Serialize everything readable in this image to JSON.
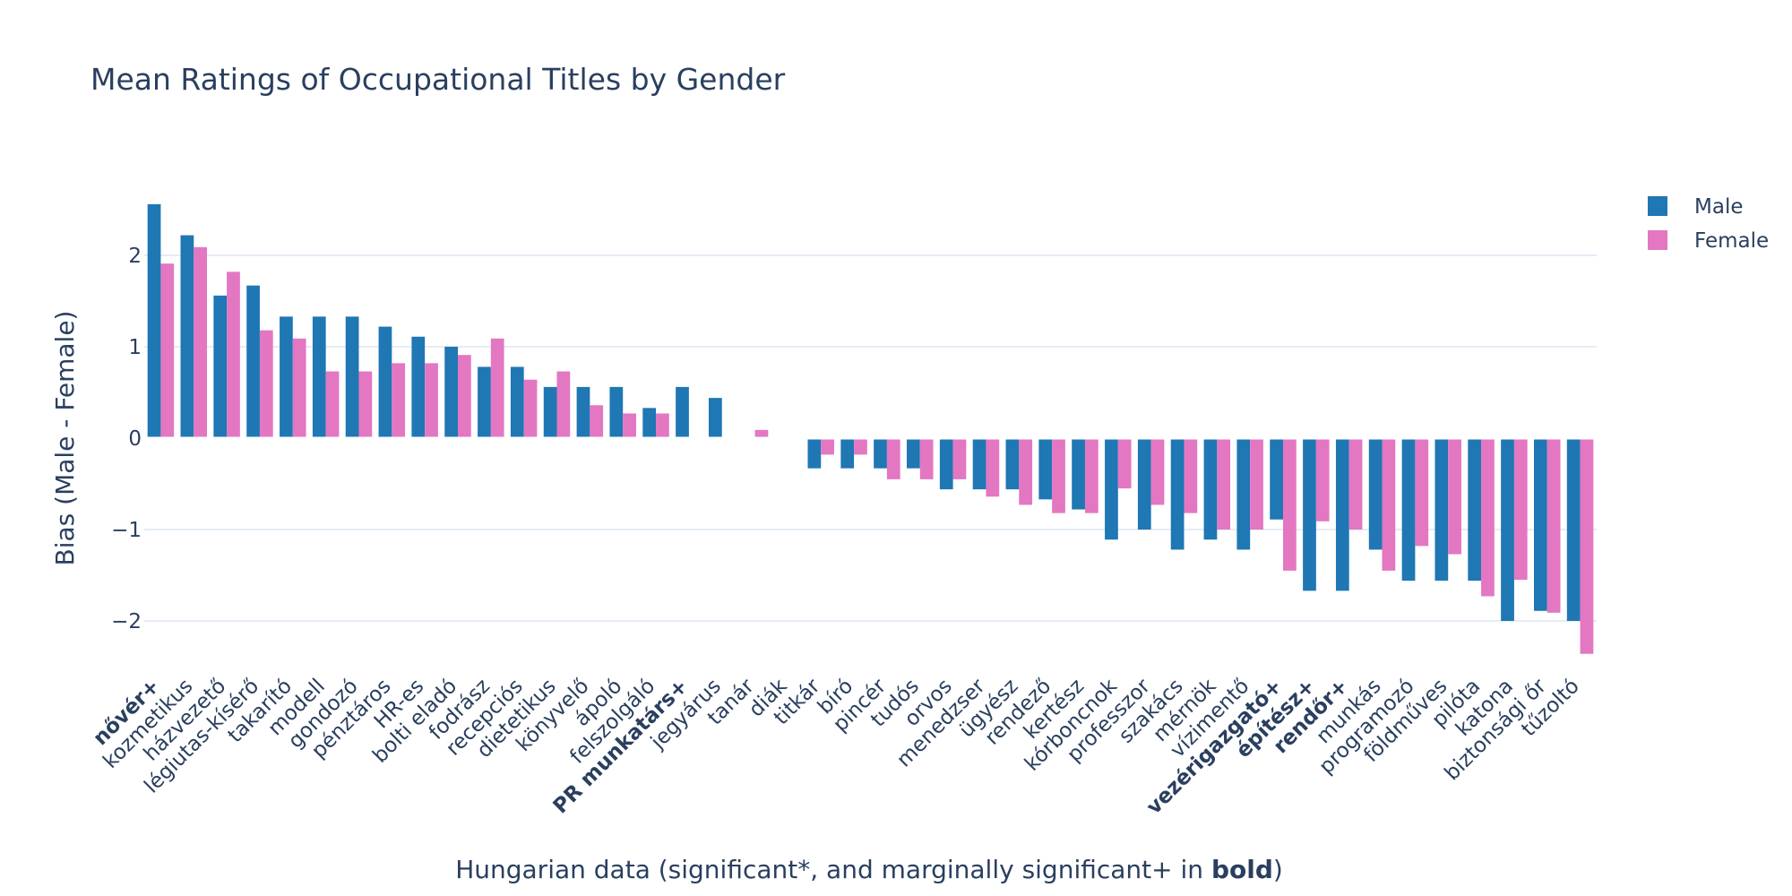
{
  "chart_data": {
    "type": "bar",
    "title": "Mean Ratings of Occupational Titles by Gender",
    "xlabel_parts": [
      "Hungarian data (significant*, and marginally significant+ in ",
      "bold",
      ")"
    ],
    "ylabel": "Bias (Male - Female)",
    "ylim": [
      -2.6,
      2.75
    ],
    "yticks": [
      -2,
      -1,
      0,
      1,
      2
    ],
    "ytick_labels": [
      "−2",
      "−1",
      "0",
      "1",
      "2"
    ],
    "grid": true,
    "legend_position": "top-right",
    "categories": [
      "nővér+",
      "kozmetikus",
      "házvezető",
      "légiutas-kísérő",
      "takarító",
      "modell",
      "gondozó",
      "pénztáros",
      "HR-es",
      "bolti eladó",
      "fodrász",
      "recepciós",
      "dietetikus",
      "könyvelő",
      "ápoló",
      "felszolgáló",
      "PR munkatárs+",
      "jegyárus",
      "tanár",
      "diák",
      "titkár",
      "bíró",
      "pincér",
      "tudós",
      "orvos",
      "menedzser",
      "ügyész",
      "rendező",
      "kertész",
      "kórboncnok",
      "professzor",
      "szakács",
      "mérnök",
      "vízimentő",
      "vezérigazgató+",
      "építész+",
      "rendőr+",
      "munkás",
      "programozó",
      "földműves",
      "pilóta",
      "katona",
      "biztonsági őr",
      "tűzoltó"
    ],
    "bold_categories": [
      "nővér+",
      "PR munkatárs+",
      "vezérigazgató+",
      "építész+",
      "rendőr+"
    ],
    "series": [
      {
        "name": "Male",
        "color": "#1f77b4",
        "values": [
          2.56,
          2.22,
          1.56,
          1.67,
          1.33,
          1.33,
          1.33,
          1.22,
          1.11,
          1.0,
          0.78,
          0.78,
          0.56,
          0.56,
          0.56,
          0.33,
          0.56,
          0.44,
          0.0,
          0.0,
          -0.33,
          -0.33,
          -0.33,
          -0.33,
          -0.56,
          -0.56,
          -0.56,
          -0.67,
          -0.78,
          -1.11,
          -1.0,
          -1.22,
          -1.11,
          -1.22,
          -0.89,
          -1.67,
          -1.67,
          -1.22,
          -1.56,
          -1.56,
          -1.56,
          -2.0,
          -1.89,
          -2.0
        ]
      },
      {
        "name": "Female",
        "color": "#e377c2",
        "values": [
          1.91,
          2.09,
          1.82,
          1.18,
          1.09,
          0.73,
          0.73,
          0.82,
          0.82,
          0.91,
          1.09,
          0.64,
          0.73,
          0.36,
          0.27,
          0.27,
          0.0,
          0.0,
          0.09,
          0.0,
          -0.18,
          -0.18,
          -0.45,
          -0.45,
          -0.45,
          -0.64,
          -0.73,
          -0.82,
          -0.82,
          -0.55,
          -0.73,
          -0.82,
          -1.0,
          -1.0,
          -1.45,
          -0.91,
          -1.0,
          -1.45,
          -1.18,
          -1.27,
          -1.73,
          -1.55,
          -1.91,
          -2.36
        ]
      }
    ]
  }
}
